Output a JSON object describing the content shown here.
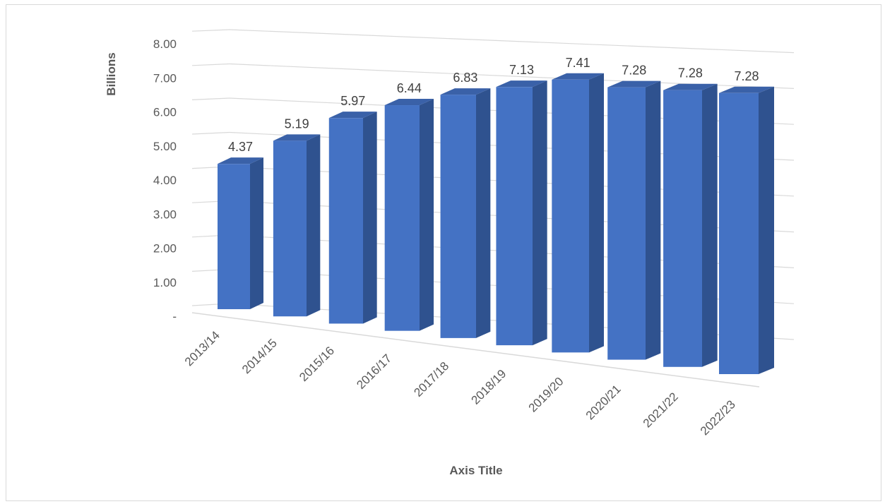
{
  "chart_data": {
    "type": "bar",
    "style": "3d-column",
    "categories": [
      "2013/14",
      "2014/15",
      "2015/16",
      "2016/17",
      "2017/18",
      "2018/19",
      "2019/20",
      "2020/21",
      "2021/22",
      "2022/23"
    ],
    "values": [
      4.37,
      5.19,
      5.97,
      6.44,
      6.83,
      7.13,
      7.41,
      7.28,
      7.28,
      7.28
    ],
    "data_labels": [
      "4.37",
      "5.19",
      "5.97",
      "6.44",
      "6.83",
      "7.13",
      "7.41",
      "7.28",
      "7.28",
      "7.28"
    ],
    "title": "",
    "xlabel": "Axis Title",
    "ylabel": "Billions",
    "ylim": [
      0,
      8
    ],
    "y_ticks": [
      "-",
      "1.00",
      "2.00",
      "3.00",
      "4.00",
      "5.00",
      "6.00",
      "7.00",
      "8.00"
    ],
    "grid": true,
    "legend": "none",
    "colors": {
      "bar_front": "#4472c4",
      "bar_side": "#2f528f",
      "bar_top": "#3a61a8",
      "gridline": "#d9d9d9"
    }
  }
}
